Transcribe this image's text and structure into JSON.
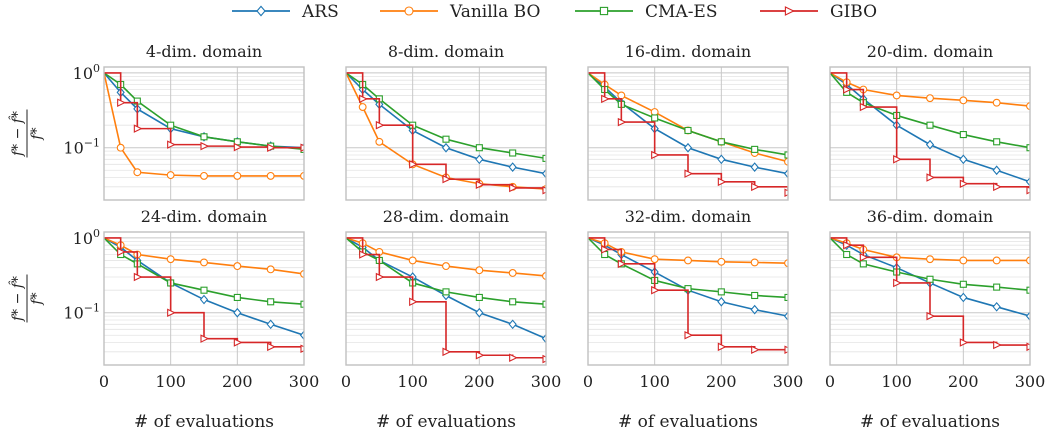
{
  "legend": {
    "placement": "top-center",
    "entries": [
      {
        "name": "ARS",
        "color": "#1f77b4",
        "marker": "diamond"
      },
      {
        "name": "Vanilla BO",
        "color": "#ff7f0e",
        "marker": "circle"
      },
      {
        "name": "CMA-ES",
        "color": "#2ca02c",
        "marker": "square"
      },
      {
        "name": "GIBO",
        "color": "#d62728",
        "marker": "triangle-right"
      }
    ]
  },
  "shared_axes": {
    "xlabel": "# of evaluations",
    "ylabel": "(f* − f̂*)/f*",
    "xlim": [
      0,
      300
    ],
    "ylim": [
      0.02,
      1.2
    ],
    "yscale": "log",
    "xticks": [
      "0",
      "100",
      "200",
      "300"
    ],
    "yticks": [
      "10^0",
      "10^-1"
    ],
    "grid": true
  },
  "chart_data": [
    {
      "type": "line",
      "title": "4-dim. domain",
      "x": [
        0,
        25,
        50,
        100,
        150,
        200,
        250,
        300
      ],
      "series": [
        {
          "name": "ARS",
          "values": [
            1.0,
            0.55,
            0.33,
            0.18,
            0.14,
            0.12,
            0.105,
            0.1
          ]
        },
        {
          "name": "Vanilla BO",
          "values": [
            1.0,
            0.1,
            0.047,
            0.043,
            0.042,
            0.042,
            0.042,
            0.042
          ]
        },
        {
          "name": "CMA-ES",
          "values": [
            1.0,
            0.7,
            0.42,
            0.2,
            0.14,
            0.12,
            0.105,
            0.095
          ]
        },
        {
          "name": "GIBO",
          "values": [
            1.0,
            0.4,
            0.18,
            0.11,
            0.105,
            0.102,
            0.1,
            0.1
          ]
        }
      ]
    },
    {
      "type": "line",
      "title": "8-dim. domain",
      "x": [
        0,
        25,
        50,
        100,
        150,
        200,
        250,
        300
      ],
      "series": [
        {
          "name": "ARS",
          "values": [
            1.0,
            0.6,
            0.38,
            0.17,
            0.1,
            0.07,
            0.055,
            0.045
          ]
        },
        {
          "name": "Vanilla BO",
          "values": [
            1.0,
            0.35,
            0.12,
            0.06,
            0.04,
            0.033,
            0.03,
            0.028
          ]
        },
        {
          "name": "CMA-ES",
          "values": [
            1.0,
            0.7,
            0.45,
            0.2,
            0.13,
            0.1,
            0.085,
            0.072
          ]
        },
        {
          "name": "GIBO",
          "values": [
            1.0,
            0.45,
            0.2,
            0.06,
            0.038,
            0.032,
            0.029,
            0.027
          ]
        }
      ]
    },
    {
      "type": "line",
      "title": "16-dim. domain",
      "x": [
        0,
        25,
        50,
        100,
        150,
        200,
        250,
        300
      ],
      "series": [
        {
          "name": "ARS",
          "values": [
            1.0,
            0.65,
            0.4,
            0.18,
            0.1,
            0.07,
            0.055,
            0.045
          ]
        },
        {
          "name": "Vanilla BO",
          "values": [
            1.0,
            0.7,
            0.5,
            0.3,
            0.17,
            0.12,
            0.085,
            0.065
          ]
        },
        {
          "name": "CMA-ES",
          "values": [
            1.0,
            0.6,
            0.38,
            0.25,
            0.17,
            0.12,
            0.095,
            0.08
          ]
        },
        {
          "name": "GIBO",
          "values": [
            1.0,
            0.45,
            0.22,
            0.08,
            0.045,
            0.035,
            0.03,
            0.025
          ]
        }
      ]
    },
    {
      "type": "line",
      "title": "20-dim. domain",
      "x": [
        0,
        25,
        50,
        100,
        150,
        200,
        250,
        300
      ],
      "series": [
        {
          "name": "ARS",
          "values": [
            1.0,
            0.7,
            0.45,
            0.2,
            0.11,
            0.07,
            0.05,
            0.035
          ]
        },
        {
          "name": "Vanilla BO",
          "values": [
            1.0,
            0.75,
            0.6,
            0.5,
            0.46,
            0.43,
            0.4,
            0.36
          ]
        },
        {
          "name": "CMA-ES",
          "values": [
            1.0,
            0.55,
            0.4,
            0.27,
            0.2,
            0.15,
            0.12,
            0.1
          ]
        },
        {
          "name": "GIBO",
          "values": [
            1.0,
            0.6,
            0.35,
            0.07,
            0.04,
            0.033,
            0.03,
            0.027
          ]
        }
      ]
    },
    {
      "type": "line",
      "title": "24-dim. domain",
      "x": [
        0,
        25,
        50,
        100,
        150,
        200,
        250,
        300
      ],
      "series": [
        {
          "name": "ARS",
          "values": [
            1.0,
            0.75,
            0.5,
            0.25,
            0.15,
            0.1,
            0.07,
            0.05
          ]
        },
        {
          "name": "Vanilla BO",
          "values": [
            1.0,
            0.8,
            0.6,
            0.52,
            0.47,
            0.42,
            0.38,
            0.33
          ]
        },
        {
          "name": "CMA-ES",
          "values": [
            1.0,
            0.6,
            0.45,
            0.25,
            0.2,
            0.16,
            0.14,
            0.13
          ]
        },
        {
          "name": "GIBO",
          "values": [
            1.0,
            0.65,
            0.3,
            0.1,
            0.045,
            0.04,
            0.035,
            0.033
          ]
        }
      ]
    },
    {
      "type": "line",
      "title": "28-dim. domain",
      "x": [
        0,
        25,
        50,
        100,
        150,
        200,
        250,
        300
      ],
      "series": [
        {
          "name": "ARS",
          "values": [
            1.0,
            0.75,
            0.5,
            0.3,
            0.17,
            0.1,
            0.07,
            0.045
          ]
        },
        {
          "name": "Vanilla BO",
          "values": [
            1.0,
            0.85,
            0.65,
            0.5,
            0.42,
            0.37,
            0.34,
            0.31
          ]
        },
        {
          "name": "CMA-ES",
          "values": [
            1.0,
            0.65,
            0.5,
            0.25,
            0.19,
            0.16,
            0.14,
            0.13
          ]
        },
        {
          "name": "GIBO",
          "values": [
            1.0,
            0.6,
            0.3,
            0.14,
            0.03,
            0.027,
            0.025,
            0.024
          ]
        }
      ]
    },
    {
      "type": "line",
      "title": "32-dim. domain",
      "x": [
        0,
        25,
        50,
        100,
        150,
        200,
        250,
        300
      ],
      "series": [
        {
          "name": "ARS",
          "values": [
            1.0,
            0.8,
            0.6,
            0.35,
            0.2,
            0.14,
            0.11,
            0.09
          ]
        },
        {
          "name": "Vanilla BO",
          "values": [
            1.0,
            0.85,
            0.65,
            0.52,
            0.5,
            0.48,
            0.47,
            0.46
          ]
        },
        {
          "name": "CMA-ES",
          "values": [
            1.0,
            0.6,
            0.45,
            0.27,
            0.21,
            0.19,
            0.17,
            0.16
          ]
        },
        {
          "name": "GIBO",
          "values": [
            1.0,
            0.7,
            0.45,
            0.2,
            0.05,
            0.035,
            0.032,
            0.032
          ]
        }
      ]
    },
    {
      "type": "line",
      "title": "36-dim. domain",
      "x": [
        0,
        25,
        50,
        100,
        150,
        200,
        250,
        300
      ],
      "series": [
        {
          "name": "ARS",
          "values": [
            1.0,
            0.8,
            0.6,
            0.4,
            0.25,
            0.16,
            0.12,
            0.09
          ]
        },
        {
          "name": "Vanilla BO",
          "values": [
            1.0,
            0.85,
            0.7,
            0.55,
            0.52,
            0.5,
            0.5,
            0.5
          ]
        },
        {
          "name": "CMA-ES",
          "values": [
            1.0,
            0.6,
            0.45,
            0.35,
            0.28,
            0.24,
            0.22,
            0.2
          ]
        },
        {
          "name": "GIBO",
          "values": [
            1.0,
            0.8,
            0.55,
            0.25,
            0.09,
            0.04,
            0.037,
            0.035
          ]
        }
      ]
    }
  ]
}
